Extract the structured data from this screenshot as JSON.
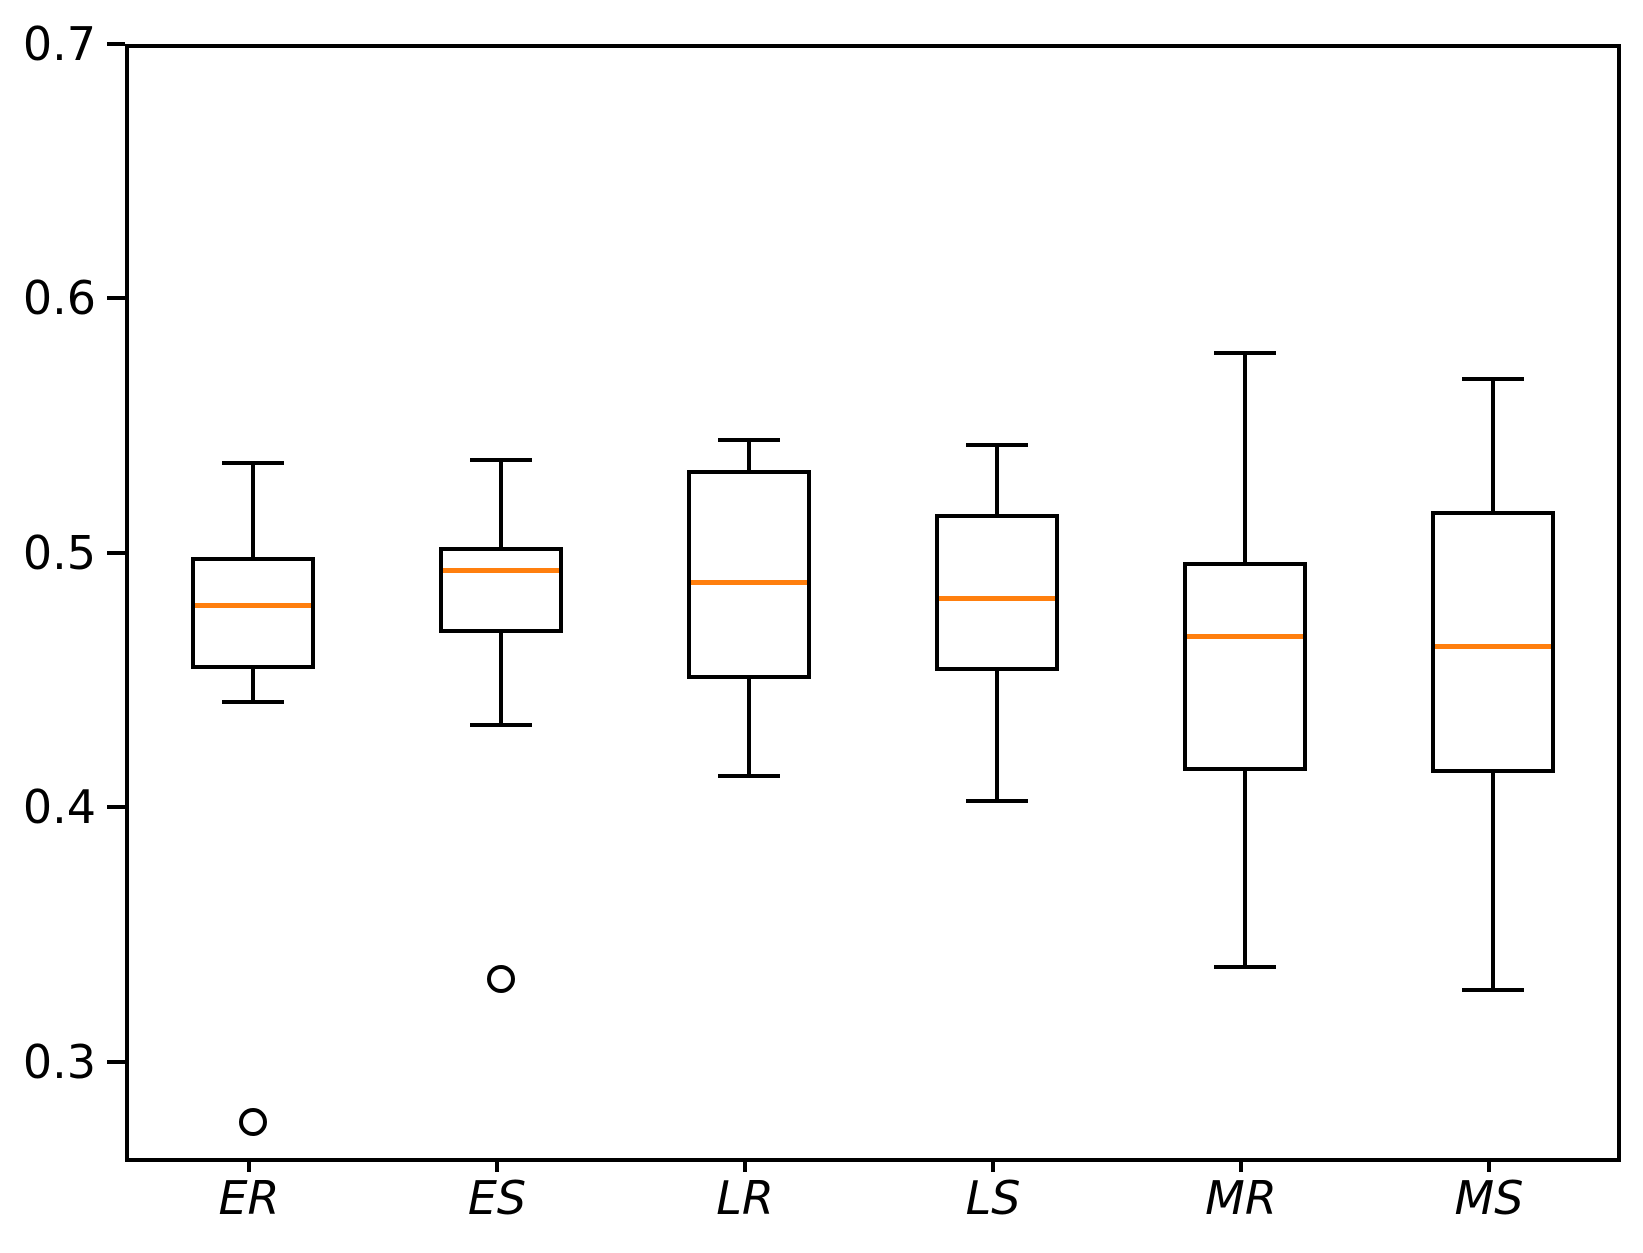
{
  "chart_data": {
    "type": "boxplot",
    "title": "",
    "xlabel": "",
    "ylabel": "",
    "grid": false,
    "legend": null,
    "categories": [
      "ER",
      "ES",
      "LR",
      "LS",
      "MR",
      "MS"
    ],
    "ylim": [
      0.2638,
      0.7
    ],
    "yticks": [
      0.3,
      0.4,
      0.5,
      0.6,
      0.7
    ],
    "ytick_labels": [
      "0.3",
      "0.4",
      "0.5",
      "0.6",
      "0.7"
    ],
    "series": [
      {
        "category": "ER",
        "whisker_low": 0.443,
        "q1": 0.456,
        "median": 0.481,
        "q3": 0.5,
        "whisker_high": 0.537,
        "outliers": [
          0.278
        ]
      },
      {
        "category": "ES",
        "whisker_low": 0.434,
        "q1": 0.47,
        "median": 0.495,
        "q3": 0.504,
        "whisker_high": 0.538,
        "outliers": [
          0.334
        ]
      },
      {
        "category": "LR",
        "whisker_low": 0.414,
        "q1": 0.452,
        "median": 0.49,
        "q3": 0.534,
        "whisker_high": 0.546,
        "outliers": []
      },
      {
        "category": "LS",
        "whisker_low": 0.404,
        "q1": 0.455,
        "median": 0.484,
        "q3": 0.517,
        "whisker_high": 0.544,
        "outliers": []
      },
      {
        "category": "MR",
        "whisker_low": 0.339,
        "q1": 0.416,
        "median": 0.469,
        "q3": 0.498,
        "whisker_high": 0.58,
        "outliers": []
      },
      {
        "category": "MS",
        "whisker_low": 0.33,
        "q1": 0.415,
        "median": 0.465,
        "q3": 0.518,
        "whisker_high": 0.57,
        "outliers": []
      }
    ],
    "colors": {
      "box_edge": "#000000",
      "median": "#ff7f0e",
      "whisker": "#000000",
      "outlier_edge": "#000000",
      "background": "#ffffff"
    }
  }
}
